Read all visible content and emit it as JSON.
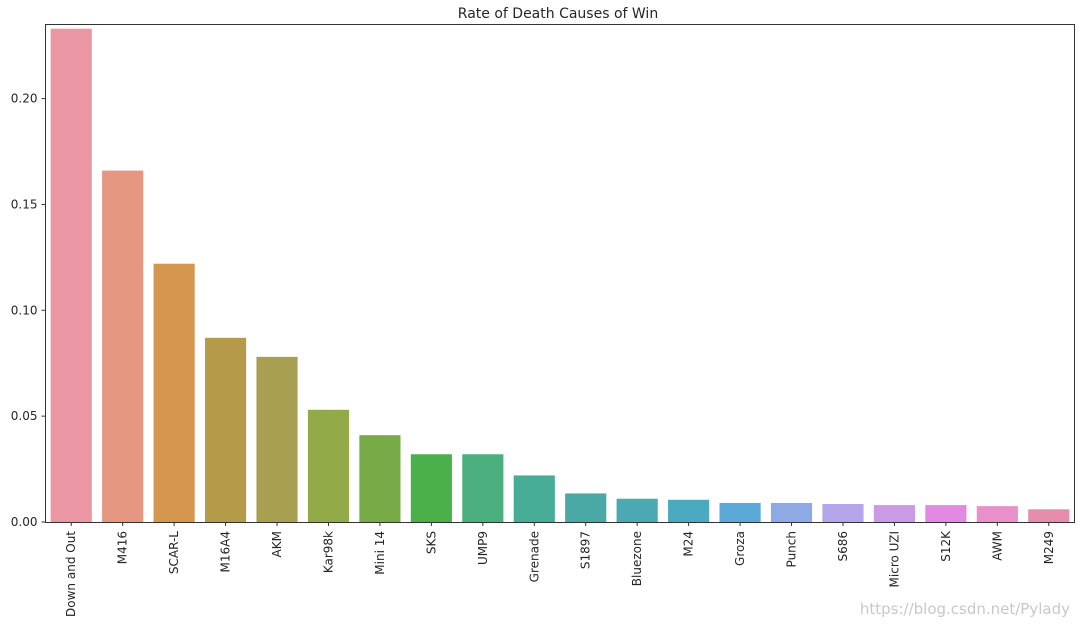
{
  "chart_data": {
    "type": "bar",
    "title": "Rate of Death Causes of Win",
    "xlabel": "",
    "ylabel": "",
    "ylim": [
      0,
      0.235
    ],
    "yticks": [
      0.0,
      0.05,
      0.1,
      0.15,
      0.2
    ],
    "ytick_labels": [
      "0.00",
      "0.05",
      "0.10",
      "0.15",
      "0.20"
    ],
    "grid": false,
    "categories": [
      "Down and Out",
      "M416",
      "SCAR-L",
      "M16A4",
      "AKM",
      "Kar98k",
      "Mini 14",
      "SKS",
      "UMP9",
      "Grenade",
      "S1897",
      "Bluezone",
      "M24",
      "Groza",
      "Punch",
      "S686",
      "Micro UZI",
      "S12K",
      "AWM",
      "M249"
    ],
    "values": [
      0.233,
      0.166,
      0.122,
      0.087,
      0.078,
      0.053,
      0.041,
      0.032,
      0.032,
      0.022,
      0.0135,
      0.011,
      0.0105,
      0.009,
      0.009,
      0.0085,
      0.008,
      0.008,
      0.0075,
      0.006
    ],
    "colors": [
      "#ea96a3",
      "#e59781",
      "#d59750",
      "#b59b49",
      "#a8a050",
      "#93aa48",
      "#77ab48",
      "#4cb04a",
      "#4bb07e",
      "#48ad97",
      "#4aa8a5",
      "#4ba9b3",
      "#4caac0",
      "#59a8d6",
      "#8fa9e5",
      "#b3a6ea",
      "#cb9ae5",
      "#e28ae1",
      "#e790c9",
      "#e68dab"
    ]
  },
  "watermark": "https://blog.csdn.net/Pylady"
}
